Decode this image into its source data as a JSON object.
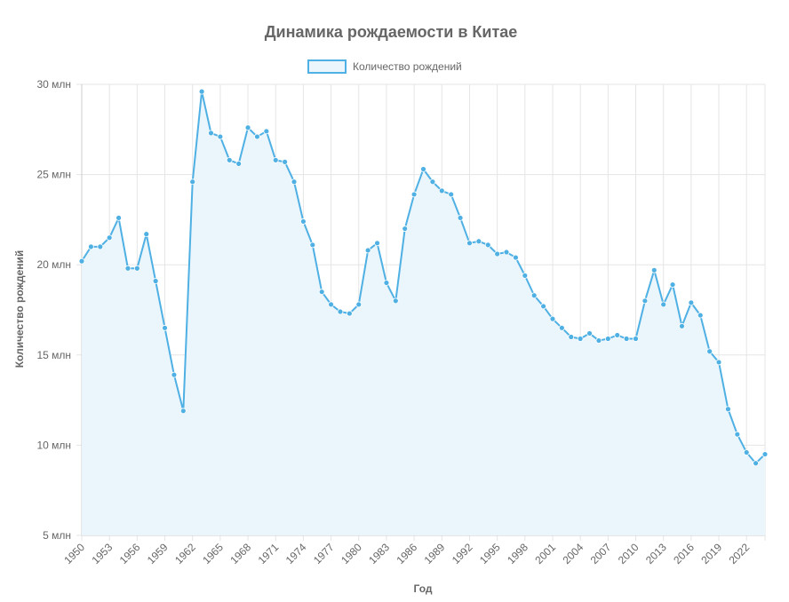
{
  "colors": {
    "line": "#4fb0e4",
    "fill": "#eaf5fc",
    "grid": "#e5e5e5",
    "text": "#666666"
  },
  "chart_data": {
    "type": "line",
    "title": "Динамика рождаемости в Китае",
    "legend": [
      "Количество рождений"
    ],
    "legend_position": "top",
    "xlabel": "Год",
    "ylabel": "Количество рождений",
    "y_unit_suffix": " млн",
    "ylim": [
      5,
      30
    ],
    "yticks": [
      5,
      10,
      15,
      20,
      25,
      30
    ],
    "xlim": [
      1950,
      2024
    ],
    "xticks": [
      1950,
      1953,
      1956,
      1959,
      1962,
      1965,
      1968,
      1971,
      1974,
      1977,
      1980,
      1983,
      1986,
      1989,
      1992,
      1995,
      1998,
      2001,
      2004,
      2007,
      2010,
      2013,
      2016,
      2019,
      2022
    ],
    "grid": true,
    "series": [
      {
        "name": "Количество рождений",
        "x": [
          1950,
          1951,
          1952,
          1953,
          1954,
          1955,
          1956,
          1957,
          1958,
          1959,
          1960,
          1961,
          1962,
          1963,
          1964,
          1965,
          1966,
          1967,
          1968,
          1969,
          1970,
          1971,
          1972,
          1973,
          1974,
          1975,
          1976,
          1977,
          1978,
          1979,
          1980,
          1981,
          1982,
          1983,
          1984,
          1985,
          1986,
          1987,
          1988,
          1989,
          1990,
          1991,
          1992,
          1993,
          1994,
          1995,
          1996,
          1997,
          1998,
          1999,
          2000,
          2001,
          2002,
          2003,
          2004,
          2005,
          2006,
          2007,
          2008,
          2009,
          2010,
          2011,
          2012,
          2013,
          2014,
          2015,
          2016,
          2017,
          2018,
          2019,
          2020,
          2021,
          2022,
          2023,
          2024
        ],
        "values": [
          20.2,
          21.0,
          21.0,
          21.5,
          22.6,
          19.8,
          19.8,
          21.7,
          19.1,
          16.5,
          13.9,
          11.9,
          24.6,
          29.6,
          27.3,
          27.1,
          25.8,
          25.6,
          27.6,
          27.1,
          27.4,
          25.8,
          25.7,
          24.6,
          22.4,
          21.1,
          18.5,
          17.8,
          17.4,
          17.3,
          17.8,
          20.8,
          21.2,
          19.0,
          18.0,
          22.0,
          23.9,
          25.3,
          24.6,
          24.1,
          23.9,
          22.6,
          21.2,
          21.3,
          21.1,
          20.6,
          20.7,
          20.4,
          19.4,
          18.3,
          17.7,
          17.0,
          16.5,
          16.0,
          15.9,
          16.2,
          15.8,
          15.9,
          16.1,
          15.9,
          15.9,
          18.0,
          19.7,
          17.8,
          18.9,
          16.6,
          17.9,
          17.2,
          15.2,
          14.6,
          12.0,
          10.6,
          9.6,
          9.0,
          9.5
        ]
      }
    ]
  }
}
